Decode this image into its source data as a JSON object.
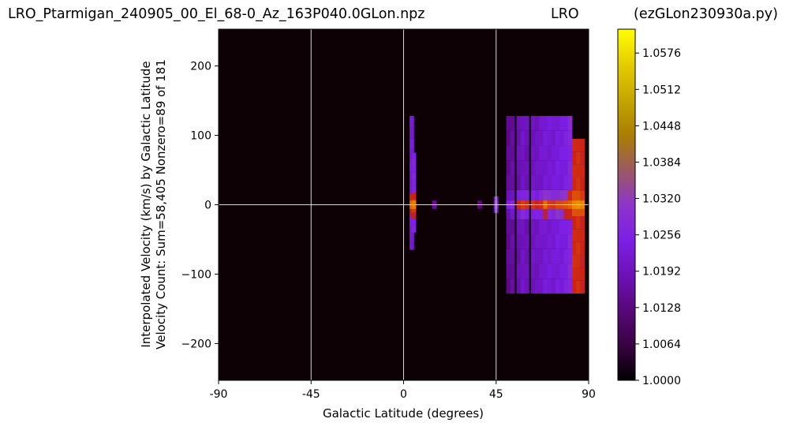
{
  "titles": {
    "left": "LRO_Ptarmigan_240905_00_El_68-0_Az_163P040.0GLon.npz",
    "center": "LRO",
    "right": "(ezGLon230930a.py)"
  },
  "chart_data": {
    "type": "heatmap",
    "xlabel": "Galactic Latitude (degrees)",
    "ylabel_lines": [
      "Interpolated Velocity (km/s) by Galactic Latitude",
      "Velocity Count: Sum=58,405 Nonzero=89 of 181"
    ],
    "xlim": [
      -90,
      90
    ],
    "ylim": [
      -253,
      253
    ],
    "x_ticks": [
      {
        "value": -90,
        "label": "-90"
      },
      {
        "value": -45,
        "label": "-45"
      },
      {
        "value": 0,
        "label": "0"
      },
      {
        "value": 45,
        "label": "45"
      },
      {
        "value": 90,
        "label": "90"
      }
    ],
    "y_ticks": [
      {
        "value": 200,
        "label": "200"
      },
      {
        "value": 100,
        "label": "100"
      },
      {
        "value": 0,
        "label": "0"
      },
      {
        "value": -100,
        "label": "−100"
      },
      {
        "value": -200,
        "label": "−200"
      }
    ],
    "grid_x": [
      -45,
      0,
      45
    ],
    "grid_y": [
      0
    ],
    "colorbar": {
      "min": 1.0,
      "max": 1.0618,
      "colormap": "gnuplot",
      "ticks": [
        "1.0000",
        "1.0064",
        "1.0128",
        "1.0192",
        "1.0256",
        "1.0320",
        "1.0384",
        "1.0448",
        "1.0512",
        "1.0576"
      ]
    },
    "velocity_range": [
      -128,
      128
    ],
    "nonzero_latitude_range": [
      4,
      88
    ],
    "columns": [
      {
        "lat": 4,
        "ymin": -65,
        "ymax": 128,
        "level": 0.35,
        "peak": 0.72
      },
      {
        "lat": 5,
        "ymin": -40,
        "ymax": 75,
        "level": 0.4,
        "peak": 0.78
      },
      {
        "lat": 15,
        "ymin": -5,
        "ymax": 5,
        "level": 0.2,
        "peak": 0.25
      },
      {
        "lat": 37,
        "ymin": -3,
        "ymax": 3,
        "level": 0.15,
        "peak": 0.2
      },
      {
        "lat": 45,
        "ymin": -12,
        "ymax": 12,
        "level": 0.3,
        "peak": 0.45
      },
      {
        "lat": 51,
        "ymin": -128,
        "ymax": 128,
        "level": 0.22,
        "peak": 0.4
      },
      {
        "lat": 53,
        "ymin": -128,
        "ymax": 128,
        "level": 0.24,
        "peak": 0.45
      },
      {
        "lat": 56,
        "ymin": -128,
        "ymax": 128,
        "level": 0.27,
        "peak": 0.55
      },
      {
        "lat": 58,
        "ymin": -128,
        "ymax": 128,
        "level": 0.3,
        "peak": 0.62
      },
      {
        "lat": 60,
        "ymin": -128,
        "ymax": 128,
        "level": 0.28,
        "peak": 0.58
      },
      {
        "lat": 63,
        "ymin": -128,
        "ymax": 128,
        "level": 0.3,
        "peak": 0.6
      },
      {
        "lat": 65,
        "ymin": -128,
        "ymax": 128,
        "level": 0.3,
        "peak": 0.55
      },
      {
        "lat": 67,
        "ymin": -128,
        "ymax": 128,
        "level": 0.32,
        "peak": 0.58
      },
      {
        "lat": 69,
        "ymin": -128,
        "ymax": 128,
        "level": 0.34,
        "peak": 0.75
      },
      {
        "lat": 71,
        "ymin": -128,
        "ymax": 128,
        "level": 0.34,
        "peak": 0.62
      },
      {
        "lat": 73,
        "ymin": -128,
        "ymax": 128,
        "level": 0.34,
        "peak": 0.6
      },
      {
        "lat": 75,
        "ymin": -128,
        "ymax": 128,
        "level": 0.36,
        "peak": 0.65
      },
      {
        "lat": 77,
        "ymin": -128,
        "ymax": 128,
        "level": 0.36,
        "peak": 0.65
      },
      {
        "lat": 79,
        "ymin": -128,
        "ymax": 128,
        "level": 0.38,
        "peak": 0.68
      },
      {
        "lat": 81,
        "ymin": -128,
        "ymax": 128,
        "level": 0.42,
        "peak": 0.72
      },
      {
        "lat": 83,
        "ymin": -128,
        "ymax": 95,
        "level": 0.55,
        "peak": 0.8
      },
      {
        "lat": 85,
        "ymin": -128,
        "ymax": 95,
        "level": 0.56,
        "peak": 0.82
      },
      {
        "lat": 87,
        "ymin": -128,
        "ymax": 95,
        "level": 0.52,
        "peak": 0.8
      }
    ]
  }
}
